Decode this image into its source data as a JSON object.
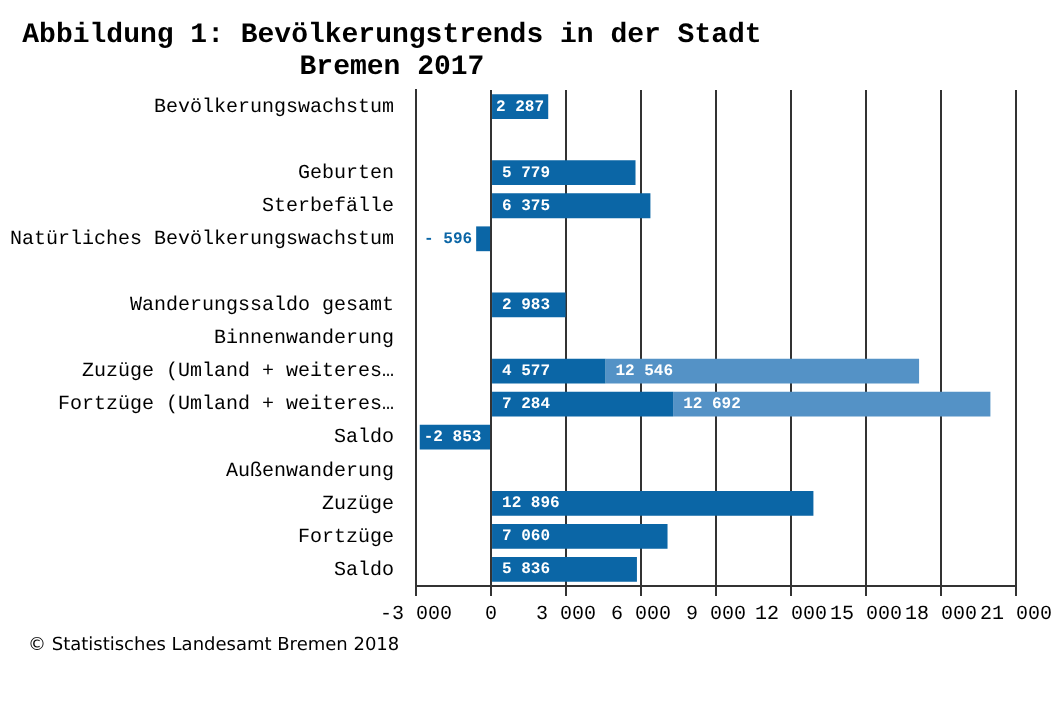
{
  "chart_data": {
    "type": "bar",
    "orientation": "horizontal",
    "stacked": true,
    "title": "Abbildung 1: Bevölkerungstrends in der Stadt Bremen 2017",
    "categories": [
      "Bevölkerungswachstum",
      null,
      "Geburten",
      "Sterbefälle",
      "Natürliches Bevölkerungswachstum",
      null,
      "Wanderungssaldo gesamt",
      "Binnenwanderung",
      "Zuzüge (Umland + weiteres…",
      "Fortzüge (Umland + weiteres…",
      "Saldo",
      "Außenwanderung",
      "Zuzüge",
      "Fortzüge",
      "Saldo"
    ],
    "series": [
      {
        "color": "#0b66a6",
        "values": [
          2287,
          null,
          5779,
          6375,
          -596,
          null,
          2983,
          null,
          4577,
          7284,
          -2853,
          null,
          12896,
          7060,
          5836
        ],
        "value_labels": [
          "2 287",
          null,
          "5 779",
          "6 375",
          "- 596",
          null,
          "2 983",
          null,
          "4 577",
          "7 284",
          "-2 853",
          null,
          "12 896",
          "7 060",
          "5 836"
        ]
      },
      {
        "color": "#5492c6",
        "values": [
          null,
          null,
          null,
          null,
          null,
          null,
          null,
          null,
          12546,
          12692,
          null,
          null,
          null,
          null,
          null
        ],
        "value_labels": [
          null,
          null,
          null,
          null,
          null,
          null,
          null,
          null,
          "12 546",
          "12 692",
          null,
          null,
          null,
          null,
          null
        ]
      }
    ],
    "xlim": [
      -3000,
      21000
    ],
    "xticks": [
      {
        "value": -3000,
        "label": "-3 000"
      },
      0,
      {
        "value": 3000,
        "label": "3 000"
      },
      {
        "value": 6000,
        "label": "6 000"
      },
      {
        "value": 9000,
        "label": "9 000"
      },
      {
        "value": 12000,
        "label": "12 000"
      },
      {
        "value": 15000,
        "label": "15 000"
      },
      {
        "value": 18000,
        "label": "18 000"
      },
      {
        "value": 21000,
        "label": "21 000"
      }
    ],
    "grid": "x",
    "legend": false,
    "annotations": [
      "© Statistisches Landesamt Bremen 2018"
    ]
  }
}
